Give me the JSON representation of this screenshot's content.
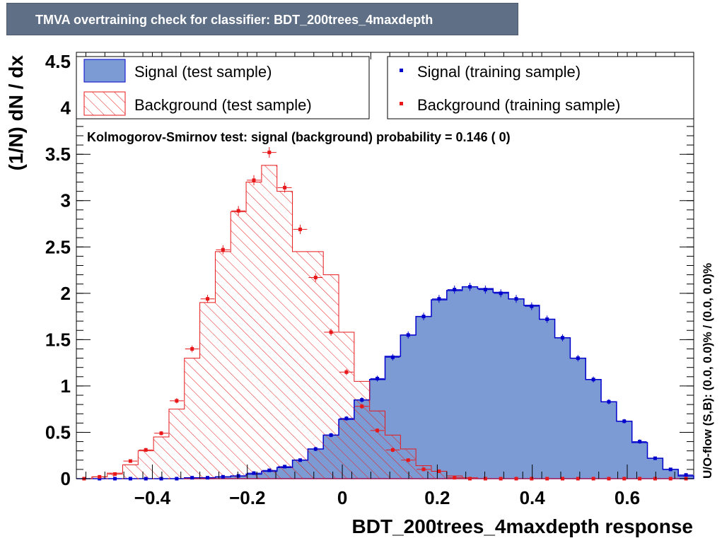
{
  "header": {
    "title": "TMVA overtraining check for classifier: BDT_200trees_4maxdepth"
  },
  "legend": {
    "signal_test": "Signal (test sample)",
    "background_test": "Background (test sample)",
    "signal_train": "Signal (training sample)",
    "background_train": "Background (training sample)"
  },
  "annotation": "Kolmogorov-Smirnov test: signal (background) probability = 0.146 (    0)",
  "overflow_label": "U/O-flow (S,B): (0.0, 0.0)% / (0.0, 0.0)%",
  "colors": {
    "signal_fill": "#7c9bd4",
    "signal_line": "#0000cc",
    "background": "#e8181a",
    "title_bg": "#5f6f86"
  },
  "chart_data": {
    "type": "histogram",
    "xlabel": "BDT_200trees_4maxdepth response",
    "ylabel": "(1/N) dN / dx",
    "xlim": [
      -0.56,
      0.74
    ],
    "ylim": [
      0,
      4.6
    ],
    "x_ticks": [
      "−0.4",
      "−0.2",
      "0",
      "0.2",
      "0.4",
      "0.6"
    ],
    "y_ticks": [
      "0",
      "0.5",
      "1",
      "1.5",
      "2",
      "2.5",
      "3",
      "3.5",
      "4",
      "4.5"
    ],
    "bin_edges_start": -0.56,
    "bin_width": 0.0325,
    "series": [
      {
        "name": "Signal (test sample)",
        "kind": "filled-histogram",
        "values": [
          0,
          0,
          0,
          0,
          0,
          0,
          0,
          0.01,
          0.01,
          0.02,
          0.03,
          0.05,
          0.08,
          0.12,
          0.2,
          0.32,
          0.47,
          0.64,
          0.85,
          1.07,
          1.32,
          1.55,
          1.75,
          1.93,
          2.03,
          2.07,
          2.05,
          2.01,
          1.94,
          1.87,
          1.72,
          1.52,
          1.3,
          1.07,
          0.83,
          0.62,
          0.39,
          0.22,
          0.1,
          0.03
        ]
      },
      {
        "name": "Background (test sample)",
        "kind": "hatched-histogram",
        "values": [
          0,
          0.02,
          0.06,
          0.15,
          0.3,
          0.45,
          0.75,
          1.3,
          1.9,
          2.45,
          2.88,
          3.2,
          3.38,
          3.1,
          2.45,
          2.45,
          2.2,
          1.58,
          1.05,
          0.73,
          0.47,
          0.32,
          0.14,
          0.08,
          0.03,
          0.01,
          0,
          0,
          0,
          0,
          0,
          0,
          0,
          0,
          0,
          0,
          0,
          0,
          0,
          0
        ]
      },
      {
        "name": "Signal (training sample)",
        "kind": "points",
        "values": [
          0,
          0,
          0,
          0,
          0,
          0,
          0,
          0.01,
          0.01,
          0.02,
          0.03,
          0.06,
          0.09,
          0.13,
          0.2,
          0.32,
          0.47,
          0.65,
          0.85,
          1.08,
          1.31,
          1.55,
          1.75,
          1.94,
          2.04,
          2.07,
          2.04,
          2.0,
          1.94,
          1.86,
          1.72,
          1.52,
          1.3,
          1.07,
          0.83,
          0.62,
          0.4,
          0.22,
          0.1,
          0.04
        ]
      },
      {
        "name": "Background (training sample)",
        "kind": "points",
        "values": [
          0,
          0.02,
          0.05,
          0.19,
          0.31,
          0.49,
          0.84,
          1.4,
          1.94,
          2.47,
          2.89,
          3.22,
          3.52,
          3.14,
          2.69,
          2.17,
          1.58,
          1.15,
          0.78,
          0.52,
          0.31,
          0.2,
          0.1,
          0.08,
          0.01,
          0,
          0,
          0,
          0,
          0,
          0,
          0,
          0,
          0,
          0,
          0,
          0,
          0,
          0,
          0
        ]
      }
    ]
  }
}
